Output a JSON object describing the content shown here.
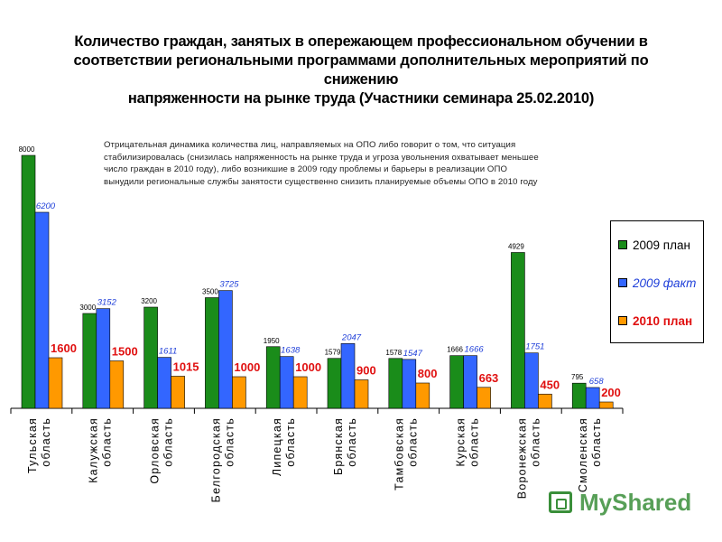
{
  "title_lines": [
    "Количество граждан, занятых в опережающем профессиональном обучении в",
    "соответствии региональными программами дополнительных мероприятий по снижению",
    "напряженности на рынке труда (Участники семинара 25.02.2010)"
  ],
  "note_lines": [
    "Отрицательная динамика количества лиц, направляемых на ОПО либо говорит о том, что ситуация",
    "стабилизировалась (снизилась напряженность на рынке труда и угроза увольнения охватывает меньшее",
    "число граждан в 2010 году), либо возникшие в 2009 году проблемы и барьеры в реализации ОПО",
    "вынудили региональные службы занятости существенно снизить планируемые объемы ОПО в 2010 году"
  ],
  "watermark": "MyShared",
  "chart_data": {
    "type": "bar",
    "categories": [
      "Тульская область",
      "Калужская область",
      "Орловская область",
      "Белгородская область",
      "Липецкая область",
      "Брянская область",
      "Тамбовская область",
      "Курская область",
      "Воронежская область",
      "Смоленская область"
    ],
    "category_lines": [
      [
        "Тульская",
        "область"
      ],
      [
        "Калужская",
        "область"
      ],
      [
        "Орловская",
        "область"
      ],
      [
        "Белгородская",
        "область"
      ],
      [
        "Липецкая",
        "область"
      ],
      [
        "Брянская",
        "область"
      ],
      [
        "Тамбовская",
        "область"
      ],
      [
        "Курская",
        "область"
      ],
      [
        "Воронежская",
        "область"
      ],
      [
        "Смоленская",
        "область"
      ]
    ],
    "series": [
      {
        "name": "2009 план",
        "color": "#1a8c1a",
        "label_color": "#000000",
        "label_style": "normal",
        "values": [
          8000,
          3000,
          3200,
          3500,
          1950,
          1579,
          1578,
          1666,
          4929,
          795
        ]
      },
      {
        "name": "2009 факт",
        "color": "#3366ff",
        "label_color": "#1f3fd9",
        "label_style": "italic",
        "values": [
          6200,
          3152,
          1611,
          3725,
          1638,
          2047,
          1547,
          1666,
          1751,
          658
        ]
      },
      {
        "name": "2010 план",
        "color": "#ff9900",
        "label_color": "#e01010",
        "label_style": "bold",
        "values": [
          1600,
          1500,
          1015,
          1000,
          1000,
          900,
          800,
          663,
          450,
          200
        ]
      }
    ],
    "ylim": [
      0,
      8000
    ],
    "legend_position": "right",
    "grid": false
  }
}
